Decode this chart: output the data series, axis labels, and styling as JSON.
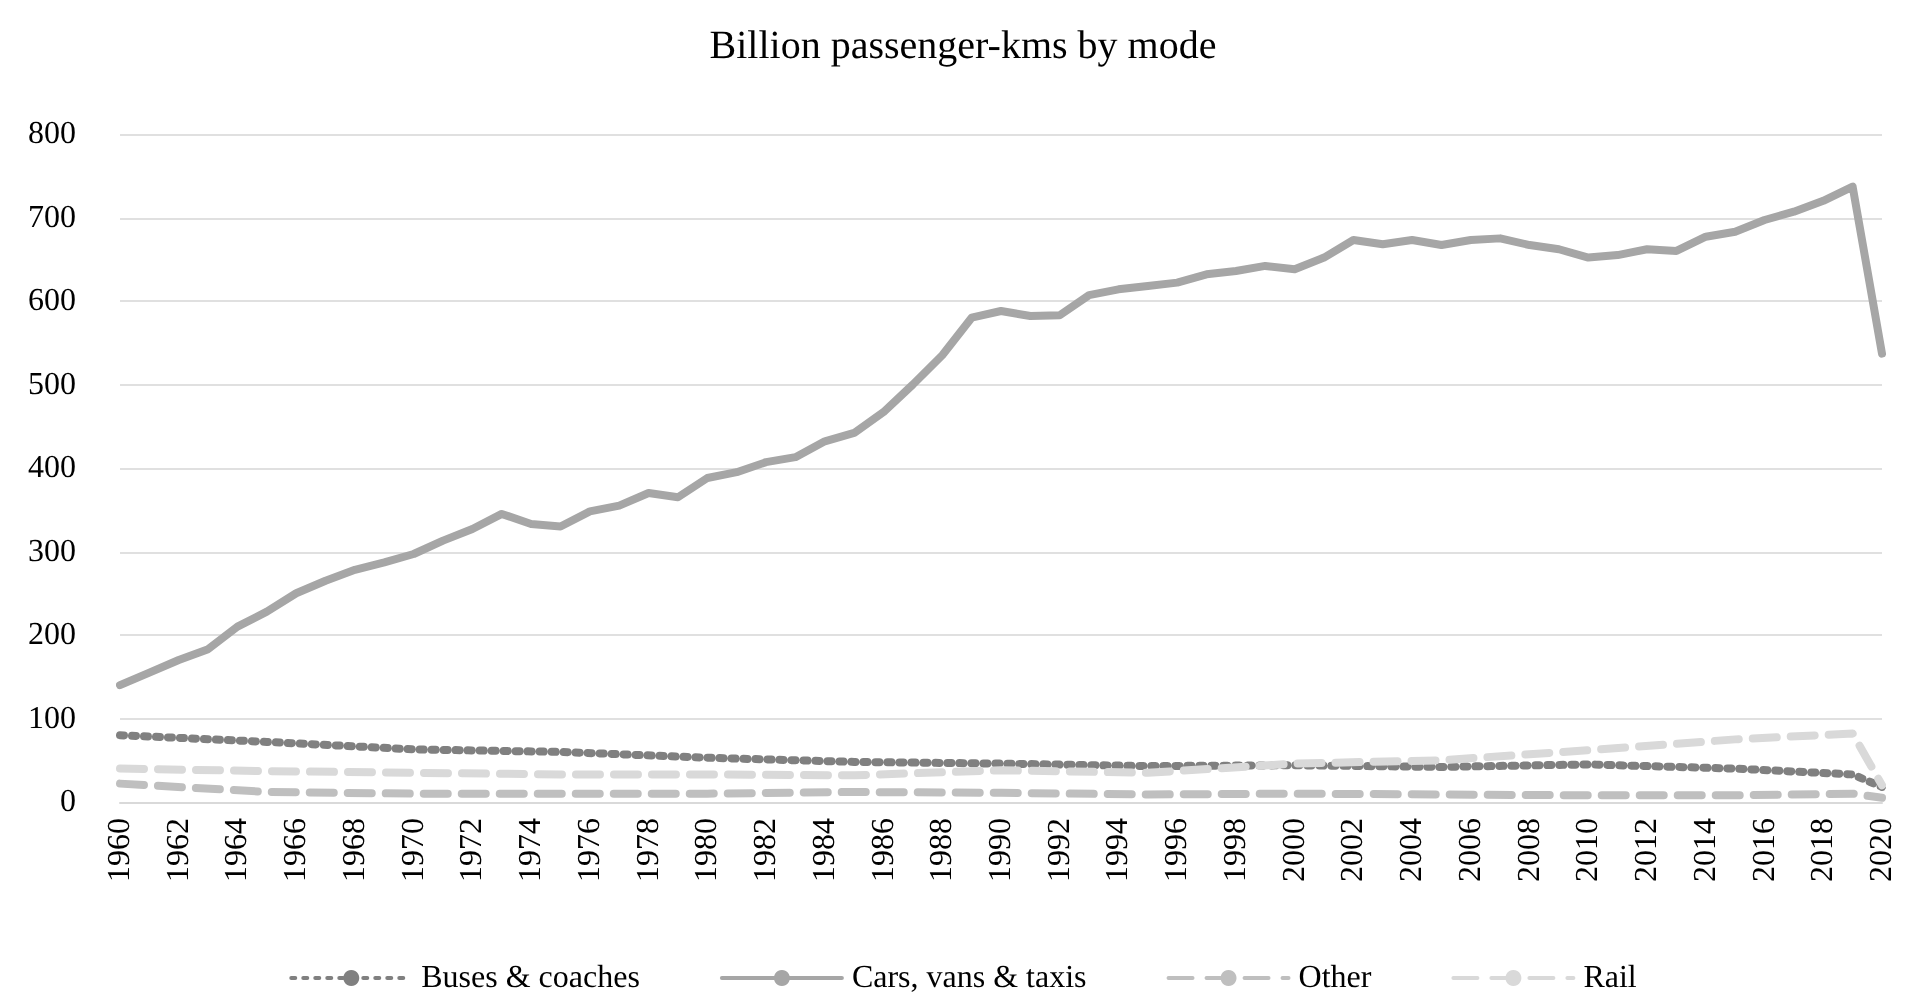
{
  "chart_data": {
    "type": "line",
    "title": "Billion passenger-kms by mode",
    "xlim": [
      1960,
      2020
    ],
    "xticks": [
      1960,
      1962,
      1964,
      1966,
      1968,
      1970,
      1972,
      1974,
      1976,
      1978,
      1980,
      1982,
      1984,
      1986,
      1988,
      1990,
      1992,
      1994,
      1996,
      1998,
      2000,
      2002,
      2004,
      2006,
      2008,
      2010,
      2012,
      2014,
      2016,
      2018,
      2020
    ],
    "ylim": [
      0,
      800
    ],
    "yticks": [
      0,
      100,
      200,
      300,
      400,
      500,
      600,
      700,
      800
    ],
    "grid": "y",
    "legend": "bottom",
    "marker": "none",
    "series": [
      {
        "name": "Buses & coaches",
        "color": "#808080",
        "line_style": "dotted",
        "x": [
          1960,
          1965,
          1970,
          1975,
          1980,
          1985,
          1990,
          1995,
          2000,
          2005,
          2010,
          2015,
          2019,
          2020
        ],
        "values": [
          80,
          72,
          63,
          60,
          53,
          48,
          46,
          43,
          44,
          42,
          45,
          40,
          33,
          18
        ]
      },
      {
        "name": "Cars, vans & taxis",
        "color": "#a6a6a6",
        "line_style": "solid",
        "x": [
          1960,
          1961,
          1962,
          1963,
          1964,
          1965,
          1966,
          1967,
          1968,
          1969,
          1970,
          1971,
          1972,
          1973,
          1974,
          1975,
          1976,
          1977,
          1978,
          1979,
          1980,
          1981,
          1982,
          1983,
          1984,
          1985,
          1986,
          1987,
          1988,
          1989,
          1990,
          1991,
          1992,
          1993,
          1994,
          1995,
          1996,
          1997,
          1998,
          1999,
          2000,
          2001,
          2002,
          2003,
          2004,
          2005,
          2006,
          2007,
          2008,
          2009,
          2010,
          2011,
          2012,
          2013,
          2014,
          2015,
          2016,
          2017,
          2018,
          2019,
          2020
        ],
        "values": [
          140,
          155,
          170,
          183,
          210,
          228,
          250,
          265,
          278,
          287,
          297,
          313,
          327,
          345,
          333,
          330,
          348,
          355,
          370,
          365,
          388,
          395,
          407,
          413,
          432,
          442,
          467,
          500,
          535,
          580,
          588,
          582,
          583,
          607,
          614,
          618,
          622,
          632,
          636,
          642,
          638,
          652,
          673,
          668,
          673,
          667,
          673,
          675,
          667,
          662,
          652,
          655,
          662,
          660,
          677,
          683,
          697,
          707,
          720,
          737,
          537
        ]
      },
      {
        "name": "Other",
        "color": "#bfbfbf",
        "line_style": "dashed",
        "x": [
          1960,
          1965,
          1970,
          1975,
          1980,
          1985,
          1990,
          1995,
          2000,
          2005,
          2010,
          2015,
          2019,
          2020
        ],
        "values": [
          22,
          12,
          10,
          10,
          10,
          12,
          11,
          9,
          10,
          9,
          8,
          8,
          10,
          5
        ]
      },
      {
        "name": "Rail",
        "color": "#d9d9d9",
        "line_style": "dashed",
        "x": [
          1960,
          1965,
          1970,
          1975,
          1980,
          1985,
          1990,
          1995,
          2000,
          2005,
          2010,
          2015,
          2019,
          2020
        ],
        "values": [
          40,
          37,
          35,
          33,
          33,
          32,
          38,
          35,
          46,
          50,
          62,
          75,
          82,
          20
        ]
      }
    ]
  }
}
